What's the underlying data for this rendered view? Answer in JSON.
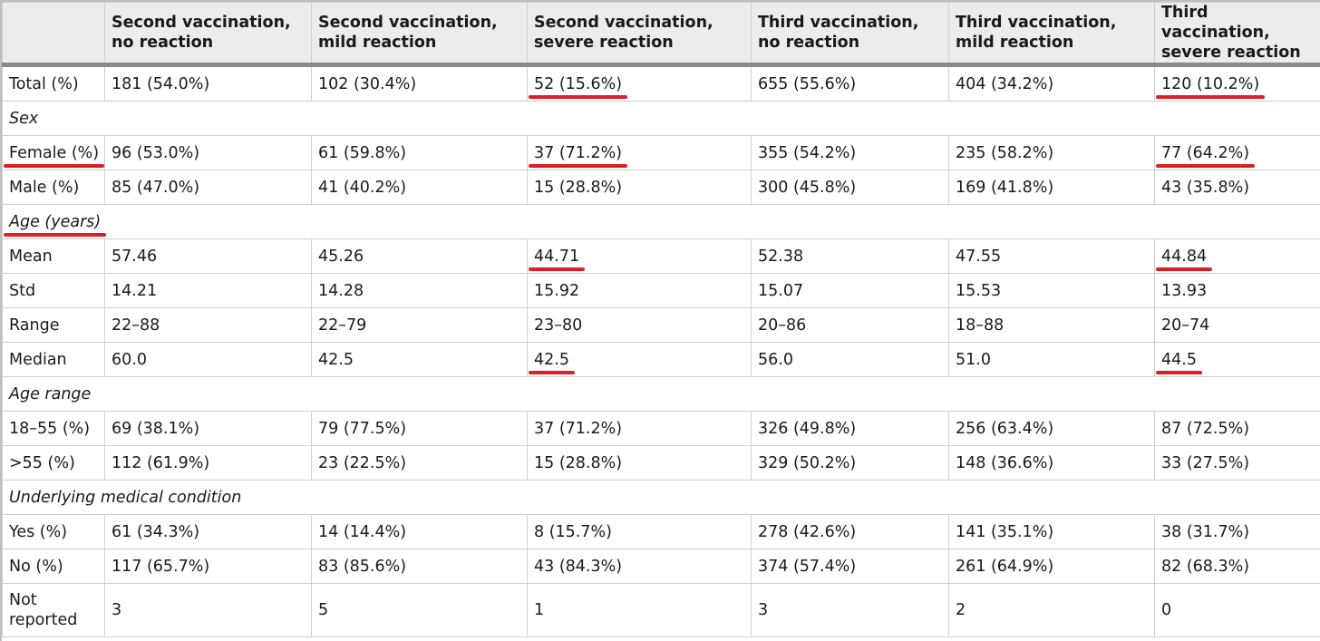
{
  "headers": [
    "",
    "Second vaccination, no reaction",
    "Second vaccination, mild reaction",
    "Second vaccination, severe reaction",
    "Third vaccination, no reaction",
    "Third vaccination, mild reaction",
    "Third vaccination, severe reaction"
  ],
  "rows": [
    {
      "type": "data",
      "cells": [
        "Total (%)",
        "181 (54.0%)",
        "102 (30.4%)",
        "52 (15.6%)",
        "655 (55.6%)",
        "404 (34.2%)",
        "120 (10.2%)"
      ],
      "underline": [
        3,
        6
      ]
    },
    {
      "type": "section",
      "label": "Sex"
    },
    {
      "type": "data",
      "cells": [
        "Female (%)",
        "96 (53.0%)",
        "61 (59.8%)",
        "37 (71.2%)",
        "355 (54.2%)",
        "235 (58.2%)",
        "77 (64.2%)"
      ],
      "underline": [
        0,
        3,
        6
      ]
    },
    {
      "type": "data",
      "cells": [
        "Male (%)",
        "85 (47.0%)",
        "41 (40.2%)",
        "15 (28.8%)",
        "300 (45.8%)",
        "169 (41.8%)",
        "43 (35.8%)"
      ],
      "underline": []
    },
    {
      "type": "section",
      "label": "Age (years)",
      "underline": true
    },
    {
      "type": "data",
      "cells": [
        "Mean",
        "57.46",
        "45.26",
        "44.71",
        "52.38",
        "47.55",
        "44.84"
      ],
      "underline": [
        3,
        6
      ]
    },
    {
      "type": "data",
      "cells": [
        "Std",
        "14.21",
        "14.28",
        "15.92",
        "15.07",
        "15.53",
        "13.93"
      ],
      "underline": []
    },
    {
      "type": "data",
      "cells": [
        "Range",
        "22–88",
        "22–79",
        "23–80",
        "20–86",
        "18–88",
        "20–74"
      ],
      "underline": []
    },
    {
      "type": "data",
      "cells": [
        "Median",
        "60.0",
        "42.5",
        "42.5",
        "56.0",
        "51.0",
        "44.5"
      ],
      "underline": [
        3,
        6
      ]
    },
    {
      "type": "section",
      "label": "Age range"
    },
    {
      "type": "data",
      "cells": [
        "18–55 (%)",
        "69 (38.1%)",
        "79 (77.5%)",
        "37 (71.2%)",
        "326 (49.8%)",
        "256 (63.4%)",
        "87 (72.5%)"
      ],
      "underline": []
    },
    {
      "type": "data",
      "cells": [
        ">55 (%)",
        "112 (61.9%)",
        "23 (22.5%)",
        "15 (28.8%)",
        "329 (50.2%)",
        "148 (36.6%)",
        "33 (27.5%)"
      ],
      "underline": []
    },
    {
      "type": "section",
      "label": "Underlying medical condition"
    },
    {
      "type": "data",
      "cells": [
        "Yes (%)",
        "61 (34.3%)",
        "14 (14.4%)",
        "8 (15.7%)",
        "278 (42.6%)",
        "141 (35.1%)",
        "38 (31.7%)"
      ],
      "underline": []
    },
    {
      "type": "data",
      "cells": [
        "No (%)",
        "117 (65.7%)",
        "83 (85.6%)",
        "43 (84.3%)",
        "374 (57.4%)",
        "261 (64.9%)",
        "82 (68.3%)"
      ],
      "underline": []
    },
    {
      "type": "data",
      "tall": true,
      "cells": [
        "Not reported",
        "3",
        "5",
        "1",
        "3",
        "2",
        "0"
      ],
      "underline": []
    }
  ],
  "colors": {
    "header_bg": "#ececec",
    "header_rule": "#8a8a8a",
    "grid": "#cfcfcf",
    "underline": "#dc1f26"
  }
}
